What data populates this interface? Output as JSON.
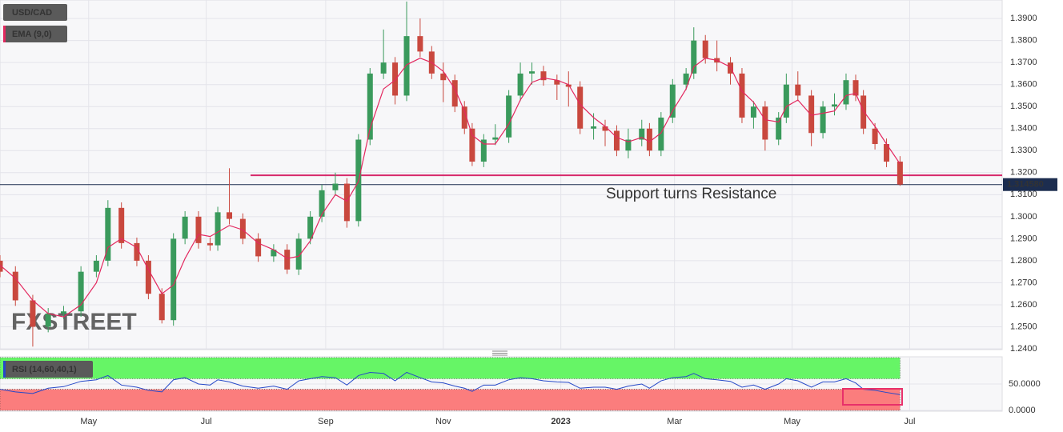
{
  "chart_data": [
    {
      "type": "candlestick",
      "title": "USD/CAD",
      "x": [
        0,
        8,
        17,
        25,
        33,
        42,
        50,
        56,
        63,
        71,
        77,
        84,
        90,
        96,
        103,
        109,
        113,
        119,
        126,
        134,
        142,
        149,
        155,
        161,
        167,
        174,
        180,
        186,
        192,
        199,
        205,
        211,
        218,
        224,
        230,
        236,
        241,
        245,
        251,
        257,
        264,
        270,
        276,
        282,
        289,
        295,
        301,
        308,
        314,
        320,
        326,
        333,
        337,
        343,
        349,
        356,
        360,
        366,
        372,
        379,
        385,
        391,
        397,
        404,
        408,
        414,
        421,
        427,
        433,
        439,
        444,
        448,
        454,
        460,
        467
      ],
      "open": [
        1.28,
        1.275,
        1.262,
        1.25,
        1.256,
        1.257,
        1.275,
        1.28,
        1.304,
        1.288,
        1.28,
        1.265,
        1.253,
        1.29,
        1.3,
        1.288,
        1.287,
        1.302,
        1.299,
        1.29,
        1.282,
        1.285,
        1.276,
        1.29,
        1.3,
        1.312,
        1.315,
        1.298,
        1.335,
        1.365,
        1.37,
        1.355,
        1.382,
        1.375,
        1.365,
        1.362,
        1.35,
        1.34,
        1.325,
        1.335,
        1.336,
        1.355,
        1.365,
        1.366,
        1.362,
        1.36,
        1.359,
        1.34,
        1.341,
        1.339,
        1.33,
        1.335,
        1.34,
        1.33,
        1.345,
        1.36,
        1.365,
        1.38,
        1.372,
        1.37,
        1.365,
        1.345,
        1.35,
        1.335,
        1.345,
        1.36,
        1.355,
        1.338,
        1.35,
        1.351,
        1.362,
        1.355,
        1.34,
        1.333,
        1.325
      ],
      "high": [
        1.2825,
        1.2775,
        1.2645,
        1.2585,
        1.2595,
        1.2775,
        1.2825,
        1.3075,
        1.3065,
        1.2905,
        1.2825,
        1.2675,
        1.2925,
        1.3025,
        1.3025,
        1.2905,
        1.3045,
        1.322,
        1.3015,
        1.2925,
        1.2875,
        1.2875,
        1.2925,
        1.3025,
        1.3145,
        1.32,
        1.3175,
        1.3375,
        1.3675,
        1.385,
        1.3725,
        1.3977,
        1.39,
        1.3775,
        1.37,
        1.3645,
        1.3525,
        1.3425,
        1.3375,
        1.342,
        1.3575,
        1.37,
        1.37,
        1.3685,
        1.3645,
        1.366,
        1.3615,
        1.347,
        1.344,
        1.3415,
        1.34,
        1.344,
        1.3425,
        1.3475,
        1.3625,
        1.3675,
        1.386,
        1.3825,
        1.38,
        1.3725,
        1.3675,
        1.3525,
        1.3525,
        1.3475,
        1.365,
        1.366,
        1.3575,
        1.3525,
        1.356,
        1.365,
        1.3645,
        1.3575,
        1.3425,
        1.3355,
        1.3275
      ],
      "low": [
        1.2725,
        1.2595,
        1.241,
        1.2475,
        1.2535,
        1.2545,
        1.2725,
        1.2775,
        1.2855,
        1.2775,
        1.2625,
        1.2515,
        1.2505,
        1.2875,
        1.2855,
        1.2845,
        1.2845,
        1.2965,
        1.2875,
        1.2795,
        1.2795,
        1.274,
        1.2735,
        1.2875,
        1.2975,
        1.3095,
        1.295,
        1.2955,
        1.3325,
        1.3625,
        1.351,
        1.3525,
        1.3725,
        1.3625,
        1.352,
        1.3475,
        1.3375,
        1.323,
        1.3225,
        1.3325,
        1.3335,
        1.3525,
        1.36,
        1.3595,
        1.353,
        1.35,
        1.3375,
        1.335,
        1.332,
        1.3275,
        1.3265,
        1.332,
        1.3275,
        1.3275,
        1.3425,
        1.3575,
        1.3625,
        1.3695,
        1.366,
        1.36,
        1.3425,
        1.34,
        1.33,
        1.3325,
        1.3425,
        1.3525,
        1.332,
        1.3355,
        1.346,
        1.3485,
        1.3525,
        1.3375,
        1.3305,
        1.3225,
        1.314
      ],
      "close": [
        1.275,
        1.262,
        1.25,
        1.256,
        1.257,
        1.275,
        1.28,
        1.304,
        1.288,
        1.28,
        1.265,
        1.253,
        1.29,
        1.3,
        1.288,
        1.287,
        1.302,
        1.299,
        1.29,
        1.282,
        1.285,
        1.276,
        1.29,
        1.3,
        1.312,
        1.315,
        1.298,
        1.335,
        1.365,
        1.37,
        1.355,
        1.382,
        1.375,
        1.365,
        1.362,
        1.35,
        1.34,
        1.325,
        1.335,
        1.336,
        1.355,
        1.365,
        1.366,
        1.362,
        1.36,
        1.359,
        1.34,
        1.341,
        1.339,
        1.33,
        1.335,
        1.34,
        1.33,
        1.345,
        1.36,
        1.365,
        1.38,
        1.372,
        1.37,
        1.365,
        1.345,
        1.35,
        1.335,
        1.345,
        1.36,
        1.355,
        1.338,
        1.35,
        1.351,
        1.362,
        1.355,
        1.34,
        1.333,
        1.325,
        1.3146
      ],
      "up_color": "#3a9a5c",
      "down_color": "#c9483e",
      "series": [
        {
          "name": "EMA (9,0)",
          "color": "#e3285f",
          "values": [
            1.278,
            1.272,
            1.262,
            1.256,
            1.2545,
            1.26,
            1.27,
            1.286,
            1.29,
            1.286,
            1.276,
            1.265,
            1.269,
            1.281,
            1.292,
            1.291,
            1.293,
            1.296,
            1.294,
            1.288,
            1.285,
            1.281,
            1.282,
            1.289,
            1.301,
            1.31,
            1.307,
            1.316,
            1.34,
            1.358,
            1.362,
            1.369,
            1.372,
            1.37,
            1.366,
            1.358,
            1.348,
            1.337,
            1.333,
            1.333,
            1.342,
            1.353,
            1.361,
            1.363,
            1.362,
            1.36,
            1.351,
            1.345,
            1.341,
            1.336,
            1.334,
            1.336,
            1.334,
            1.338,
            1.348,
            1.358,
            1.368,
            1.372,
            1.371,
            1.368,
            1.357,
            1.352,
            1.344,
            1.343,
            1.35,
            1.353,
            1.346,
            1.347,
            1.348,
            1.355,
            1.356,
            1.348,
            1.341,
            1.333,
            1.324
          ]
        }
      ],
      "xlim": [
        0,
        520
      ],
      "xticks": [
        {
          "value": 46,
          "label": "May"
        },
        {
          "value": 107,
          "label": "Jul"
        },
        {
          "value": 169,
          "label": "Sep"
        },
        {
          "value": 230,
          "label": "Nov"
        },
        {
          "value": 291,
          "label": "2023"
        },
        {
          "value": 350,
          "label": "Mar"
        },
        {
          "value": 411,
          "label": "May"
        },
        {
          "value": 472,
          "label": "Jul"
        }
      ],
      "ylim": [
        1.24,
        1.3984
      ],
      "yticks": [
        {
          "value": 1.24,
          "label": "1.2400"
        },
        {
          "value": 1.25,
          "label": "1.2500"
        },
        {
          "value": 1.26,
          "label": "1.2600"
        },
        {
          "value": 1.27,
          "label": "1.2700"
        },
        {
          "value": 1.28,
          "label": "1.2800"
        },
        {
          "value": 1.29,
          "label": "1.2900"
        },
        {
          "value": 1.3,
          "label": "1.3000"
        },
        {
          "value": 1.31,
          "label": "1.3100"
        },
        {
          "value": 1.32,
          "label": "1.3200"
        },
        {
          "value": 1.33,
          "label": "1.3300"
        },
        {
          "value": 1.34,
          "label": "1.3400"
        },
        {
          "value": 1.35,
          "label": "1.3500"
        },
        {
          "value": 1.36,
          "label": "1.3600"
        },
        {
          "value": 1.37,
          "label": "1.3700"
        },
        {
          "value": 1.38,
          "label": "1.3800"
        },
        {
          "value": 1.39,
          "label": "1.3900"
        }
      ],
      "grid": true,
      "last_price": {
        "value": 1.31458,
        "label": "1.314580",
        "color": "#1c2d4f"
      },
      "reference_line": {
        "value": 1.3188,
        "x_start": 130,
        "color": "#d6286a"
      },
      "annotation": "Support turns Resistance",
      "watermark": "FXSTREET"
    },
    {
      "type": "line",
      "x": [
        0,
        8,
        17,
        25,
        33,
        42,
        50,
        56,
        63,
        71,
        77,
        84,
        90,
        96,
        103,
        109,
        113,
        119,
        126,
        134,
        142,
        149,
        155,
        161,
        167,
        174,
        180,
        186,
        192,
        199,
        205,
        211,
        218,
        224,
        230,
        236,
        241,
        245,
        251,
        257,
        264,
        270,
        276,
        282,
        289,
        295,
        301,
        308,
        314,
        320,
        326,
        333,
        337,
        343,
        349,
        356,
        360,
        366,
        372,
        379,
        385,
        391,
        397,
        404,
        408,
        414,
        421,
        427,
        433,
        439,
        444,
        448,
        454,
        460,
        467
      ],
      "series": [
        {
          "name": "RSI (14,60,40,1)",
          "color": "#2548c8",
          "values": [
            40,
            35,
            32,
            42,
            45,
            55,
            58,
            66,
            48,
            44,
            38,
            35,
            58,
            62,
            50,
            48,
            58,
            54,
            46,
            42,
            46,
            40,
            56,
            60,
            64,
            62,
            48,
            66,
            72,
            70,
            56,
            72,
            62,
            54,
            52,
            46,
            42,
            36,
            48,
            48,
            58,
            62,
            60,
            56,
            54,
            53,
            42,
            44,
            44,
            40,
            46,
            50,
            42,
            56,
            62,
            64,
            70,
            60,
            58,
            55,
            44,
            48,
            40,
            50,
            60,
            56,
            44,
            54,
            54,
            60,
            52,
            40,
            38,
            34,
            30
          ]
        }
      ],
      "bands": [
        {
          "from": 60,
          "to": 100,
          "color": "#66f566"
        },
        {
          "from": 0,
          "to": 40,
          "color": "#fb7d7d"
        }
      ],
      "xlim": [
        0,
        520
      ],
      "ylim": [
        0,
        100
      ],
      "yticks": [
        {
          "value": 0,
          "label": "0.0000"
        },
        {
          "value": 50,
          "label": "50.0000"
        }
      ]
    }
  ]
}
